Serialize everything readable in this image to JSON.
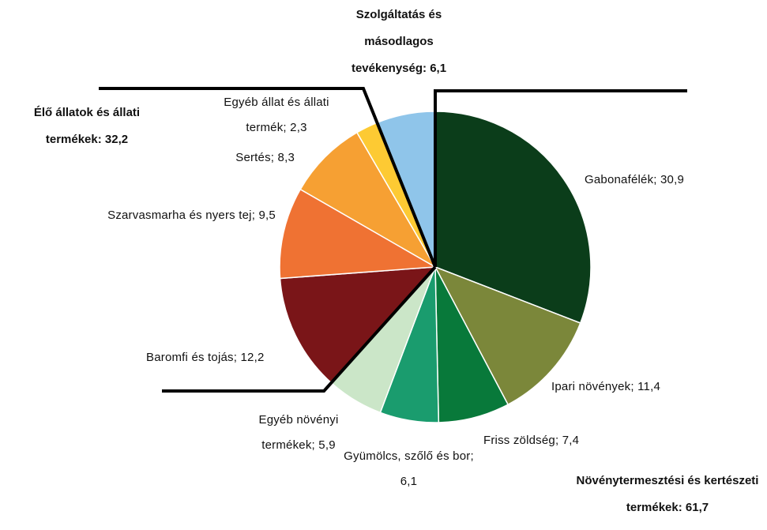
{
  "chart_data": {
    "type": "pie",
    "categories": [
      "Gabonafélék",
      "Ipari növények",
      "Friss zöldség",
      "Gyümölcs, szőlő és bor",
      "Egyéb növényi termékek",
      "Baromfi és tojás",
      "Szarvasmarha és nyers tej",
      "Sertés",
      "Egyéb állat és állati termék",
      "Szolgáltatás és másodlagos tevékenység"
    ],
    "values": [
      30.9,
      11.4,
      7.4,
      6.1,
      5.9,
      12.2,
      9.5,
      8.3,
      2.3,
      6.1
    ],
    "value_labels": [
      "30,9",
      "11,4",
      "7,4",
      "6,1",
      "5,9",
      "12,2",
      "9,5",
      "8,3",
      "2,3",
      "6,1"
    ],
    "colors": [
      "#0b3d1a",
      "#7b873a",
      "#08793a",
      "#1a9c6e",
      "#cbe6c8",
      "#7a1518",
      "#ef7233",
      "#f6a033",
      "#fdca33",
      "#8fc5ea"
    ],
    "groups": [
      {
        "name": "Növénytermesztési és kertészeti termékek:",
        "value": 61.7,
        "value_label": "61,7"
      },
      {
        "name": "Élő állatok és állati termékek:",
        "value": 32.2,
        "value_label": "32,2"
      },
      {
        "name": "Szolgáltatás és másodlagos tevékenység:",
        "value": 6.1,
        "value_label": "6,1"
      }
    ]
  }
}
